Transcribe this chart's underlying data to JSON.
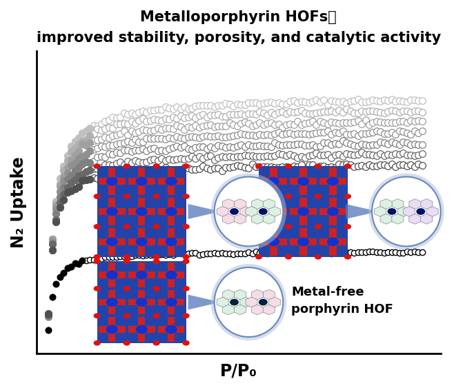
{
  "title_line1": "Metalloporphyrin HOFs：",
  "title_line2": "improved stability, porosity, and catalytic activity",
  "xlabel": "P/P₀",
  "ylabel": "N₂ Uptake",
  "background_color": "#ffffff",
  "annotation_text": "Metal-free\nporphyrin HOF",
  "annotation_fontsize": 13,
  "title_fontsize": 15,
  "upper_curve_ylevels": [
    0.88,
    0.84,
    0.8,
    0.76,
    0.72,
    0.68,
    0.64
  ],
  "upper_curve_colors": [
    "#c0c0c0",
    "#b0b0b0",
    "#a0a0a0",
    "#909090",
    "#808080",
    "#686868",
    "#505050"
  ],
  "lower_curve_ylevel": 0.32,
  "circle_markersize": 7,
  "lower_markersize": 6
}
